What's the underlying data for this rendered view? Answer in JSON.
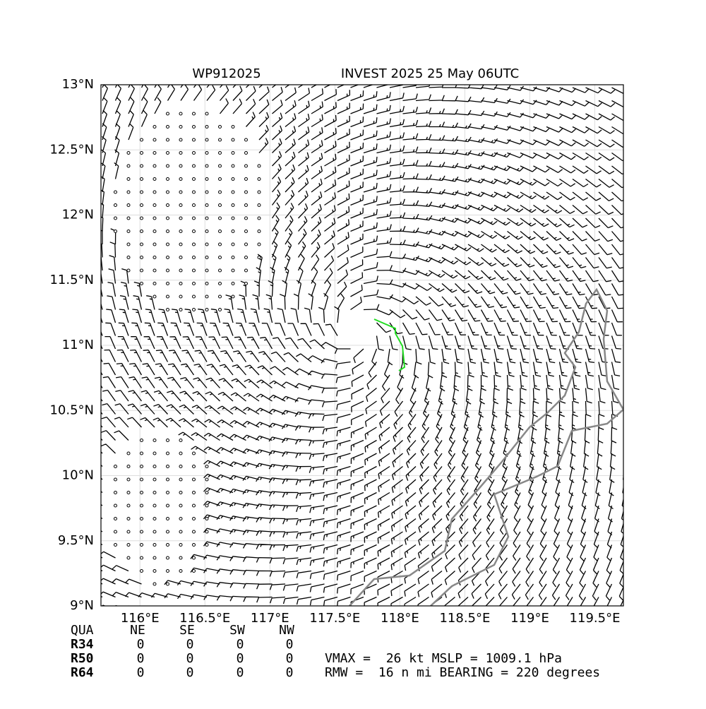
{
  "chart_data": {
    "type": "barbs",
    "title_left": "WP912025",
    "title_right": "INVEST 2025 25 May 06UTC",
    "xlim": [
      115.7,
      119.72
    ],
    "ylim": [
      9,
      13
    ],
    "xticks": [
      {
        "value": 116,
        "label": "116°E"
      },
      {
        "value": 116.5,
        "label": "116.5°E"
      },
      {
        "value": 117,
        "label": "117°E"
      },
      {
        "value": 117.5,
        "label": "117.5°E"
      },
      {
        "value": 118,
        "label": "118°E"
      },
      {
        "value": 118.5,
        "label": "118.5°E"
      },
      {
        "value": 119,
        "label": "119°E"
      },
      {
        "value": 119.5,
        "label": "119.5°E"
      }
    ],
    "yticks": [
      {
        "value": 9,
        "label": "9°N"
      },
      {
        "value": 9.5,
        "label": "9.5°N"
      },
      {
        "value": 10,
        "label": "10°N"
      },
      {
        "value": 10.5,
        "label": "10.5°N"
      },
      {
        "value": 11,
        "label": "11°N"
      },
      {
        "value": 11.5,
        "label": "11.5°N"
      },
      {
        "value": 12,
        "label": "12°N"
      },
      {
        "value": 12.5,
        "label": "12.5°N"
      },
      {
        "value": 13,
        "label": "13°N"
      }
    ],
    "grid": true
  },
  "table": {
    "header": [
      "QUA",
      "NE",
      "SE",
      "SW",
      "NW"
    ],
    "rows": [
      [
        "R34",
        0,
        0,
        0,
        0
      ],
      [
        "R50",
        0,
        0,
        0,
        0
      ],
      [
        "R64",
        0,
        0,
        0,
        0
      ]
    ]
  },
  "info": [
    "VMAX =  26 kt MSLP = 1009.1 hPa",
    "RMW =  16 n mi BEARING = 220 degrees"
  ]
}
